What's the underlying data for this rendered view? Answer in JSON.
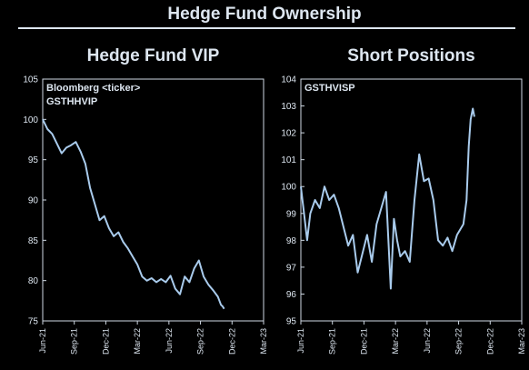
{
  "header": {
    "title": "Hedge Fund Ownership"
  },
  "chart_data": [
    {
      "type": "line",
      "title": "Hedge Fund VIP",
      "annotation": [
        "Bloomberg <ticker>",
        "GSTHHVIP"
      ],
      "ylim": [
        75,
        105
      ],
      "yticks": [
        75,
        80,
        85,
        90,
        95,
        100,
        105
      ],
      "xticks": [
        "Jun-21",
        "Sep-21",
        "Dec-21",
        "Mar-22",
        "Jun-22",
        "Sep-22",
        "Dec-22",
        "Mar-23"
      ],
      "line_color": "#a9cbec",
      "grid": false,
      "series": [
        {
          "x": [
            0,
            0.15,
            0.3,
            0.45,
            0.6,
            0.75,
            0.9,
            1.05,
            1.2,
            1.35,
            1.5,
            1.65,
            1.8,
            1.95,
            2.1,
            2.25,
            2.4,
            2.55,
            2.7,
            2.85,
            3.0,
            3.15,
            3.3,
            3.45,
            3.6,
            3.75,
            3.9,
            4.05,
            4.2,
            4.35,
            4.5,
            4.65,
            4.8,
            4.95,
            5.1,
            5.25,
            5.4,
            5.55,
            5.6,
            5.65,
            5.7,
            5.75
          ],
          "y": [
            100.0,
            98.8,
            98.2,
            97.0,
            95.8,
            96.5,
            96.8,
            97.2,
            96.0,
            94.5,
            91.5,
            89.5,
            87.5,
            88.0,
            86.5,
            85.5,
            86.0,
            84.8,
            84.0,
            83.0,
            82.0,
            80.5,
            80.0,
            80.3,
            79.8,
            80.2,
            79.8,
            80.6,
            79.0,
            78.3,
            80.5,
            79.8,
            81.5,
            82.5,
            80.5,
            79.5,
            78.8,
            78.0,
            77.5,
            77.0,
            76.8,
            76.5
          ]
        }
      ]
    },
    {
      "type": "line",
      "title": "Short Positions",
      "annotation": [
        "GSTHVISP"
      ],
      "ylim": [
        95,
        104
      ],
      "yticks": [
        95,
        96,
        97,
        98,
        99,
        100,
        101,
        102,
        103,
        104
      ],
      "xticks": [
        "Jun-21",
        "Sep-21",
        "Dec-21",
        "Mar-22",
        "Jun-22",
        "Sep-22",
        "Dec-22",
        "Mar-23"
      ],
      "line_color": "#a9cbec",
      "grid": false,
      "series": [
        {
          "x": [
            0,
            0.1,
            0.2,
            0.3,
            0.45,
            0.6,
            0.75,
            0.9,
            1.05,
            1.2,
            1.35,
            1.5,
            1.65,
            1.8,
            1.95,
            2.1,
            2.25,
            2.4,
            2.55,
            2.7,
            2.85,
            2.95,
            3.05,
            3.15,
            3.3,
            3.45,
            3.6,
            3.75,
            3.9,
            4.05,
            4.2,
            4.35,
            4.5,
            4.65,
            4.8,
            4.95,
            5.05,
            5.15,
            5.25,
            5.32,
            5.38,
            5.45,
            5.5
          ],
          "y": [
            100.0,
            99.0,
            98.0,
            99.0,
            99.5,
            99.2,
            100.0,
            99.5,
            99.7,
            99.2,
            98.5,
            97.8,
            98.2,
            96.8,
            97.5,
            98.2,
            97.2,
            98.6,
            99.2,
            99.8,
            96.2,
            98.8,
            98.0,
            97.4,
            97.6,
            97.2,
            99.5,
            101.2,
            100.2,
            100.3,
            99.5,
            98.0,
            97.8,
            98.1,
            97.6,
            98.2,
            98.4,
            98.6,
            99.5,
            101.5,
            102.5,
            102.9,
            102.6
          ]
        }
      ]
    }
  ]
}
